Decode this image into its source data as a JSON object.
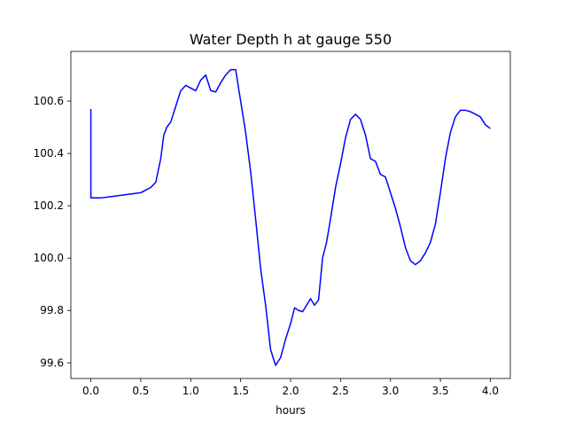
{
  "chart_data": {
    "type": "line",
    "title": "Water Depth h at gauge 550",
    "xlabel": "hours",
    "ylabel": "",
    "xlim": [
      -0.2,
      4.2
    ],
    "ylim": [
      99.54,
      100.79
    ],
    "x_ticks": [
      "0.0",
      "0.5",
      "1.0",
      "1.5",
      "2.0",
      "2.5",
      "3.0",
      "3.5",
      "4.0"
    ],
    "y_ticks": [
      "99.6",
      "99.8",
      "100.0",
      "100.2",
      "100.4",
      "100.6"
    ],
    "grid": false,
    "legend": "none",
    "series": [
      {
        "color": "#0000ff",
        "x": [
          0.0,
          0.0,
          0.0,
          0.1,
          0.2,
          0.3,
          0.4,
          0.5,
          0.55,
          0.6,
          0.65,
          0.7,
          0.73,
          0.76,
          0.8,
          0.85,
          0.9,
          0.95,
          1.0,
          1.05,
          1.1,
          1.15,
          1.2,
          1.25,
          1.3,
          1.35,
          1.4,
          1.45,
          1.5,
          1.55,
          1.6,
          1.65,
          1.7,
          1.75,
          1.8,
          1.85,
          1.9,
          1.95,
          2.0,
          2.04,
          2.08,
          2.12,
          2.16,
          2.2,
          2.24,
          2.28,
          2.32,
          2.36,
          2.4,
          2.45,
          2.5,
          2.55,
          2.6,
          2.65,
          2.7,
          2.75,
          2.8,
          2.85,
          2.9,
          2.95,
          3.0,
          3.05,
          3.1,
          3.15,
          3.2,
          3.25,
          3.3,
          3.35,
          3.4,
          3.45,
          3.5,
          3.55,
          3.6,
          3.65,
          3.7,
          3.75,
          3.8,
          3.85,
          3.9,
          3.95,
          4.0
        ],
        "y": [
          100.57,
          100.4,
          100.23,
          100.23,
          100.235,
          100.24,
          100.245,
          100.25,
          100.26,
          100.27,
          100.29,
          100.38,
          100.47,
          100.5,
          100.52,
          100.58,
          100.64,
          100.66,
          100.65,
          100.64,
          100.68,
          100.7,
          100.64,
          100.635,
          100.67,
          100.7,
          100.72,
          100.72,
          100.6,
          100.48,
          100.33,
          100.15,
          99.96,
          99.82,
          99.65,
          99.59,
          99.62,
          99.69,
          99.75,
          99.81,
          99.8,
          99.795,
          99.82,
          99.845,
          99.82,
          99.84,
          100.0,
          100.06,
          100.15,
          100.27,
          100.36,
          100.46,
          100.53,
          100.55,
          100.53,
          100.47,
          100.38,
          100.37,
          100.32,
          100.31,
          100.25,
          100.19,
          100.12,
          100.04,
          99.99,
          99.975,
          99.99,
          100.02,
          100.06,
          100.13,
          100.25,
          100.38,
          100.48,
          100.54,
          100.565,
          100.565,
          100.56,
          100.55,
          100.54,
          100.51,
          100.495
        ]
      }
    ]
  }
}
